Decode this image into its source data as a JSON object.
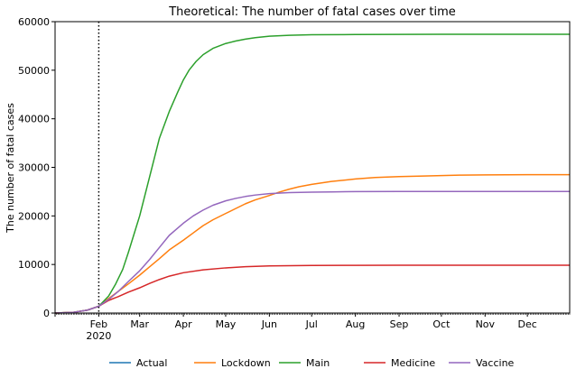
{
  "chart_data": {
    "type": "line",
    "title": "Theoretical: The number of fatal cases over time",
    "xlabel": "",
    "ylabel": "The number of fatal cases",
    "xlim": [
      "2020-01-01",
      "2020-12-31"
    ],
    "ylim": [
      0,
      60000
    ],
    "x_ticks": [
      {
        "date": "2020-02-01",
        "label": "Feb",
        "sublabel": "2020"
      },
      {
        "date": "2020-03-01",
        "label": "Mar",
        "sublabel": ""
      },
      {
        "date": "2020-04-01",
        "label": "Apr",
        "sublabel": ""
      },
      {
        "date": "2020-05-01",
        "label": "May",
        "sublabel": ""
      },
      {
        "date": "2020-06-01",
        "label": "Jun",
        "sublabel": ""
      },
      {
        "date": "2020-07-01",
        "label": "Jul",
        "sublabel": ""
      },
      {
        "date": "2020-08-01",
        "label": "Aug",
        "sublabel": ""
      },
      {
        "date": "2020-09-01",
        "label": "Sep",
        "sublabel": ""
      },
      {
        "date": "2020-10-01",
        "label": "Oct",
        "sublabel": ""
      },
      {
        "date": "2020-11-01",
        "label": "Nov",
        "sublabel": ""
      },
      {
        "date": "2020-12-01",
        "label": "Dec",
        "sublabel": ""
      }
    ],
    "y_ticks": [
      0,
      10000,
      20000,
      30000,
      40000,
      50000,
      60000
    ],
    "vertical_marker": {
      "date": "2020-02-01",
      "style": "dotted",
      "color": "#000000"
    },
    "grid": false,
    "legend_position": "bottom",
    "series": [
      {
        "name": "Actual",
        "color": "#1f77b4",
        "x": [
          "2020-01-01",
          "2020-01-14",
          "2020-01-24",
          "2020-02-01"
        ],
        "values": [
          0,
          150,
          600,
          1400
        ]
      },
      {
        "name": "Lockdown",
        "color": "#ff7f0e",
        "x": [
          "2020-01-01",
          "2020-01-14",
          "2020-01-24",
          "2020-02-01",
          "2020-02-08",
          "2020-02-15",
          "2020-02-22",
          "2020-03-01",
          "2020-03-08",
          "2020-03-15",
          "2020-03-22",
          "2020-04-01",
          "2020-04-08",
          "2020-04-15",
          "2020-04-22",
          "2020-05-01",
          "2020-05-08",
          "2020-05-15",
          "2020-05-22",
          "2020-06-01",
          "2020-06-08",
          "2020-06-15",
          "2020-06-22",
          "2020-07-01",
          "2020-07-15",
          "2020-08-01",
          "2020-08-15",
          "2020-09-01",
          "2020-09-15",
          "2020-10-01",
          "2020-10-15",
          "2020-11-01",
          "2020-12-01",
          "2020-12-31"
        ],
        "values": [
          0,
          150,
          600,
          1400,
          3000,
          4500,
          6000,
          7800,
          9500,
          11200,
          13000,
          15000,
          16500,
          18000,
          19200,
          20500,
          21500,
          22500,
          23300,
          24200,
          24900,
          25500,
          26000,
          26500,
          27100,
          27600,
          27900,
          28100,
          28200,
          28300,
          28400,
          28450,
          28500,
          28500
        ]
      },
      {
        "name": "Main",
        "color": "#2ca02c",
        "x": [
          "2020-01-01",
          "2020-01-14",
          "2020-01-24",
          "2020-02-01",
          "2020-02-08",
          "2020-02-13",
          "2020-02-18",
          "2020-02-22",
          "2020-03-01",
          "2020-03-08",
          "2020-03-15",
          "2020-03-22",
          "2020-03-28",
          "2020-04-01",
          "2020-04-05",
          "2020-04-10",
          "2020-04-15",
          "2020-04-22",
          "2020-05-01",
          "2020-05-08",
          "2020-05-15",
          "2020-05-22",
          "2020-06-01",
          "2020-06-15",
          "2020-07-01",
          "2020-08-01",
          "2020-09-01",
          "2020-10-01",
          "2020-11-01",
          "2020-12-01",
          "2020-12-31"
        ],
        "values": [
          0,
          150,
          600,
          1400,
          3500,
          6000,
          9000,
          12500,
          20000,
          28000,
          36000,
          41500,
          45500,
          48000,
          50000,
          51800,
          53200,
          54500,
          55500,
          56000,
          56400,
          56700,
          57000,
          57200,
          57300,
          57350,
          57380,
          57390,
          57400,
          57400,
          57400
        ]
      },
      {
        "name": "Medicine",
        "color": "#d62728",
        "x": [
          "2020-01-01",
          "2020-01-14",
          "2020-01-24",
          "2020-02-01",
          "2020-02-08",
          "2020-02-15",
          "2020-02-22",
          "2020-03-01",
          "2020-03-08",
          "2020-03-15",
          "2020-03-22",
          "2020-04-01",
          "2020-04-15",
          "2020-05-01",
          "2020-05-15",
          "2020-06-01",
          "2020-07-01",
          "2020-08-01",
          "2020-09-01",
          "2020-10-01",
          "2020-11-01",
          "2020-12-01",
          "2020-12-31"
        ],
        "values": [
          0,
          150,
          600,
          1400,
          2600,
          3400,
          4300,
          5200,
          6100,
          6900,
          7600,
          8300,
          8900,
          9300,
          9550,
          9700,
          9800,
          9830,
          9840,
          9850,
          9850,
          9850,
          9850
        ]
      },
      {
        "name": "Vaccine",
        "color": "#9467bd",
        "x": [
          "2020-01-01",
          "2020-01-14",
          "2020-01-24",
          "2020-02-01",
          "2020-02-08",
          "2020-02-15",
          "2020-02-22",
          "2020-03-01",
          "2020-03-08",
          "2020-03-15",
          "2020-03-22",
          "2020-04-01",
          "2020-04-08",
          "2020-04-15",
          "2020-04-22",
          "2020-05-01",
          "2020-05-08",
          "2020-05-15",
          "2020-05-22",
          "2020-06-01",
          "2020-06-15",
          "2020-07-01",
          "2020-07-15",
          "2020-08-01",
          "2020-09-01",
          "2020-10-01",
          "2020-11-01",
          "2020-12-01",
          "2020-12-31"
        ],
        "values": [
          0,
          150,
          600,
          1400,
          2800,
          4500,
          6500,
          8700,
          11000,
          13500,
          16000,
          18500,
          20000,
          21200,
          22200,
          23100,
          23600,
          24000,
          24300,
          24600,
          24800,
          24900,
          24950,
          25000,
          25020,
          25030,
          25040,
          25040,
          25040
        ]
      }
    ]
  }
}
